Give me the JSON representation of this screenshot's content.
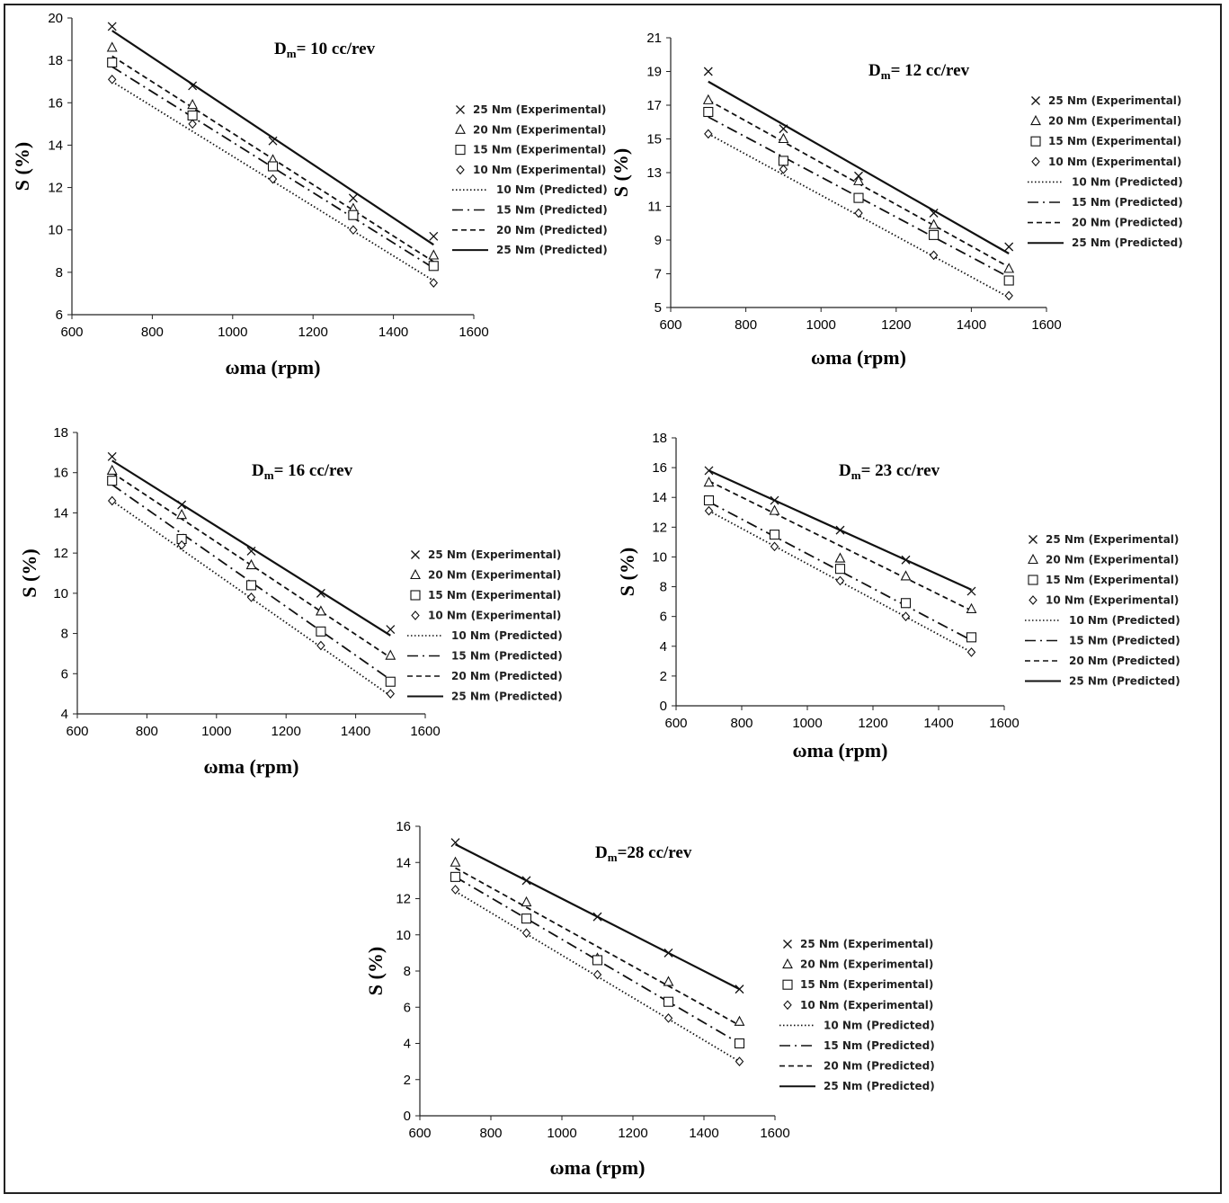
{
  "chart_data": [
    {
      "type": "scatter",
      "title": "Dm= 10 cc/rev",
      "title_main": "D",
      "title_sub": "m",
      "title_rest": "= 10 cc/rev",
      "xlabel": "ωma (rpm)",
      "ylabel": "S (%)",
      "xlim": [
        600,
        1600
      ],
      "ylim": [
        6,
        20
      ],
      "xticks": [
        600,
        800,
        1000,
        1200,
        1400,
        1600
      ],
      "yticks": [
        6,
        8,
        10,
        12,
        14,
        16,
        18,
        20
      ],
      "x": [
        700,
        900,
        1100,
        1300,
        1500
      ],
      "experimental": [
        {
          "name": "25 Nm (Experimental)",
          "marker": "x",
          "values": [
            19.6,
            16.8,
            14.2,
            11.5,
            9.7
          ]
        },
        {
          "name": "20  Nm (Experimental)",
          "marker": "triangle",
          "values": [
            18.6,
            15.9,
            13.3,
            11.0,
            8.8
          ]
        },
        {
          "name": "15  Nm (Experimental)",
          "marker": "square",
          "values": [
            17.9,
            15.4,
            13.0,
            10.7,
            8.3
          ]
        },
        {
          "name": "10  Nm (Experimental)",
          "marker": "diamond",
          "values": [
            17.1,
            15.0,
            12.4,
            10.0,
            7.5
          ]
        }
      ],
      "predicted": [
        {
          "name": "10 Nm (Predicted)",
          "dash": "dotted",
          "values": [
            17.0,
            7.6
          ]
        },
        {
          "name": "15 Nm (Predicted)",
          "dash": "dashdot",
          "values": [
            17.7,
            8.2
          ]
        },
        {
          "name": "20 Nm (Predicted)",
          "dash": "dashed",
          "values": [
            18.2,
            8.5
          ]
        },
        {
          "name": "25 Nm (Predicted)",
          "dash": "solid",
          "values": [
            19.4,
            9.3
          ]
        }
      ]
    },
    {
      "type": "scatter",
      "title": "Dm= 12 cc/rev",
      "title_main": "D",
      "title_sub": "m",
      "title_rest": "= 12 cc/rev",
      "xlabel": "ωma (rpm)",
      "ylabel": "S (%)",
      "xlim": [
        600,
        1600
      ],
      "ylim": [
        5,
        21
      ],
      "xticks": [
        600,
        800,
        1000,
        1200,
        1400,
        1600
      ],
      "yticks": [
        5,
        7,
        9,
        11,
        13,
        15,
        17,
        19,
        21
      ],
      "x": [
        700,
        900,
        1100,
        1300,
        1500
      ],
      "experimental": [
        {
          "name": "25 Nm (Experimental)",
          "marker": "x",
          "values": [
            19.0,
            15.6,
            12.8,
            10.6,
            8.6
          ]
        },
        {
          "name": "20  Nm (Experimental)",
          "marker": "triangle",
          "values": [
            17.3,
            15.0,
            12.5,
            9.9,
            7.3
          ]
        },
        {
          "name": "15  Nm (Experimental)",
          "marker": "square",
          "values": [
            16.6,
            13.7,
            11.5,
            9.3,
            6.6
          ]
        },
        {
          "name": "10  Nm (Experimental)",
          "marker": "diamond",
          "values": [
            15.3,
            13.2,
            10.6,
            8.1,
            5.7
          ]
        }
      ],
      "predicted": [
        {
          "name": "10 Nm (Predicted)",
          "dash": "dotted",
          "values": [
            15.3,
            5.6
          ]
        },
        {
          "name": "15 Nm (Predicted)",
          "dash": "dashdot",
          "values": [
            16.3,
            6.8
          ]
        },
        {
          "name": "20 Nm (Predicted)",
          "dash": "dashed",
          "values": [
            17.3,
            7.4
          ]
        },
        {
          "name": "25 Nm (Predicted)",
          "dash": "solid",
          "values": [
            18.4,
            8.2
          ]
        }
      ]
    },
    {
      "type": "scatter",
      "title": "Dm= 16 cc/rev",
      "title_main": "D",
      "title_sub": "m",
      "title_rest": "= 16 cc/rev",
      "xlabel": "ωma (rpm)",
      "ylabel": "S (%)",
      "xlim": [
        600,
        1600
      ],
      "ylim": [
        4,
        18
      ],
      "xticks": [
        600,
        800,
        1000,
        1200,
        1400,
        1600
      ],
      "yticks": [
        4,
        6,
        8,
        10,
        12,
        14,
        16,
        18
      ],
      "x": [
        700,
        900,
        1100,
        1300,
        1500
      ],
      "experimental": [
        {
          "name": "25 Nm (Experimental)",
          "marker": "x",
          "values": [
            16.8,
            14.4,
            12.1,
            10.0,
            8.2
          ]
        },
        {
          "name": "20  Nm (Experimental)",
          "marker": "triangle",
          "values": [
            16.1,
            13.9,
            11.4,
            9.1,
            6.9
          ]
        },
        {
          "name": "15  Nm (Experimental)",
          "marker": "square",
          "values": [
            15.6,
            12.7,
            10.4,
            8.1,
            5.6
          ]
        },
        {
          "name": "10  Nm (Experimental)",
          "marker": "diamond",
          "values": [
            14.6,
            12.4,
            9.8,
            7.4,
            5.0
          ]
        }
      ],
      "predicted": [
        {
          "name": "10 Nm (Predicted)",
          "dash": "dotted",
          "values": [
            14.6,
            4.9
          ]
        },
        {
          "name": "15 Nm (Predicted)",
          "dash": "dashdot",
          "values": [
            15.4,
            5.7
          ]
        },
        {
          "name": "20 Nm (Predicted)",
          "dash": "dashed",
          "values": [
            16.0,
            6.8
          ]
        },
        {
          "name": "25 Nm (Predicted)",
          "dash": "solid",
          "values": [
            16.6,
            7.9
          ]
        }
      ]
    },
    {
      "type": "scatter",
      "title": "Dm= 23 cc/rev",
      "title_main": "D",
      "title_sub": "m",
      "title_rest": "= 23 cc/rev",
      "xlabel": "ωma (rpm)",
      "ylabel": "S (%)",
      "xlim": [
        600,
        1600
      ],
      "ylim": [
        0,
        18
      ],
      "xticks": [
        600,
        800,
        1000,
        1200,
        1400,
        1600
      ],
      "yticks": [
        0,
        2,
        4,
        6,
        8,
        10,
        12,
        14,
        16,
        18
      ],
      "x": [
        700,
        900,
        1100,
        1300,
        1500
      ],
      "experimental": [
        {
          "name": "25 Nm (Experimental)",
          "marker": "x",
          "values": [
            15.8,
            13.8,
            11.8,
            9.8,
            7.7
          ]
        },
        {
          "name": "20  Nm (Experimental)",
          "marker": "triangle",
          "values": [
            15.0,
            13.1,
            9.9,
            8.7,
            6.5
          ]
        },
        {
          "name": "15  Nm (Experimental)",
          "marker": "square",
          "values": [
            13.8,
            11.5,
            9.2,
            6.9,
            4.6
          ]
        },
        {
          "name": "10  Nm (Experimental)",
          "marker": "diamond",
          "values": [
            13.1,
            10.7,
            8.4,
            6.0,
            3.6
          ]
        }
      ],
      "predicted": [
        {
          "name": "10 Nm (Predicted)",
          "dash": "dotted",
          "values": [
            13.1,
            3.6
          ]
        },
        {
          "name": "15 Nm (Predicted)",
          "dash": "dashdot",
          "values": [
            13.7,
            4.4
          ]
        },
        {
          "name": "20 Nm (Predicted)",
          "dash": "dashed",
          "values": [
            15.1,
            6.4
          ]
        },
        {
          "name": "25 Nm (Predicted)",
          "dash": "solid",
          "values": [
            15.8,
            7.8
          ]
        }
      ]
    },
    {
      "type": "scatter",
      "title": "Dm=28 cc/rev",
      "title_main": "D",
      "title_sub": "m",
      "title_rest": "=28 cc/rev",
      "xlabel": "ωma (rpm)",
      "ylabel": "S (%)",
      "xlim": [
        600,
        1600
      ],
      "ylim": [
        0,
        16
      ],
      "xticks": [
        600,
        800,
        1000,
        1200,
        1400,
        1600
      ],
      "yticks": [
        0,
        2,
        4,
        6,
        8,
        10,
        12,
        14,
        16
      ],
      "x": [
        700,
        900,
        1100,
        1300,
        1500
      ],
      "experimental": [
        {
          "name": "25 Nm (Experimental)",
          "marker": "x",
          "values": [
            15.1,
            13.0,
            11.0,
            9.0,
            7.0
          ]
        },
        {
          "name": "20  Nm (Experimental)",
          "marker": "triangle",
          "values": [
            14.0,
            11.8,
            8.7,
            7.4,
            5.2
          ]
        },
        {
          "name": "15  Nm (Experimental)",
          "marker": "square",
          "values": [
            13.2,
            10.9,
            8.6,
            6.3,
            4.0
          ]
        },
        {
          "name": "10  Nm (Experimental)",
          "marker": "diamond",
          "values": [
            12.5,
            10.1,
            7.8,
            5.4,
            3.0
          ]
        }
      ],
      "predicted": [
        {
          "name": "10 Nm (Predicted)",
          "dash": "dotted",
          "values": [
            12.4,
            3.0
          ]
        },
        {
          "name": "15 Nm (Predicted)",
          "dash": "dashdot",
          "values": [
            13.2,
            4.0
          ]
        },
        {
          "name": "20 Nm (Predicted)",
          "dash": "dashed",
          "values": [
            13.7,
            5.0
          ]
        },
        {
          "name": "25 Nm (Predicted)",
          "dash": "solid",
          "values": [
            15.0,
            7.0
          ]
        }
      ]
    }
  ]
}
